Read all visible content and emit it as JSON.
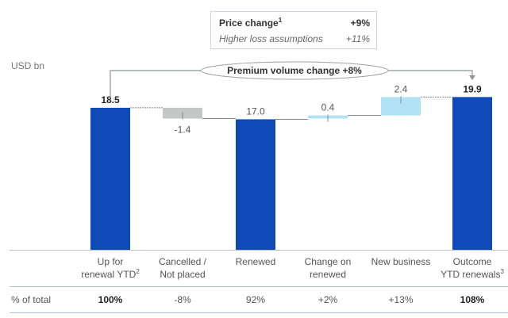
{
  "unit_label": "USD bn",
  "info_box": {
    "row1": {
      "label": "Price change",
      "sup": "1",
      "value": "+9%"
    },
    "row2": {
      "label": "Higher loss assumptions",
      "value": "+11%"
    }
  },
  "colors": {
    "total": "#0f4ab8",
    "decrease": "#c3c7c5",
    "increase": "#b2e2f4",
    "connector": "#7d8a86"
  },
  "chart_data": {
    "type": "waterfall",
    "title": "",
    "ylabel": "USD bn",
    "ylim": [
      0,
      20
    ],
    "grid": false,
    "annotation": "Premium volume change +8%",
    "categories": [
      {
        "line1": "Up for",
        "line2": "renewal YTD",
        "sup": "2"
      },
      {
        "line1": "Cancelled /",
        "line2": "Not placed",
        "sup": ""
      },
      {
        "line1": "Renewed",
        "line2": "",
        "sup": ""
      },
      {
        "line1": "Change on",
        "line2": "renewed",
        "sup": ""
      },
      {
        "line1": "New business",
        "line2": "",
        "sup": ""
      },
      {
        "line1": "Outcome",
        "line2": "YTD renewals",
        "sup": "3"
      }
    ],
    "bars": [
      {
        "kind": "total",
        "start": 0,
        "end": 18.5,
        "label": "18.5"
      },
      {
        "kind": "decrease",
        "start": 18.5,
        "end": 17.1,
        "label": "-1.4"
      },
      {
        "kind": "total",
        "start": 0,
        "end": 17.0,
        "label": "17.0"
      },
      {
        "kind": "increase",
        "start": 17.1,
        "end": 17.5,
        "label": "0.4"
      },
      {
        "kind": "increase",
        "start": 17.5,
        "end": 19.9,
        "label": "2.4"
      },
      {
        "kind": "total",
        "start": 0,
        "end": 19.9,
        "label": "19.9"
      }
    ],
    "pct_row_label": "% of total",
    "pct_of_total": [
      "100%",
      "-8%",
      "92%",
      "+2%",
      "+13%",
      "108%"
    ]
  }
}
